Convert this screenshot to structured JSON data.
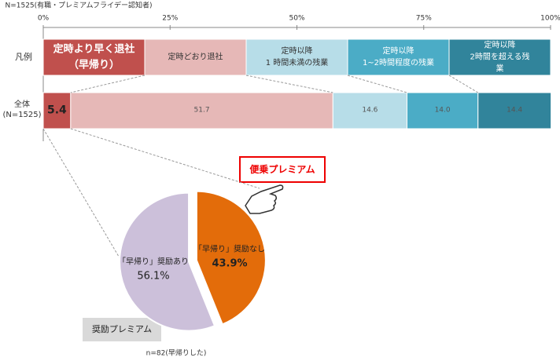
{
  "chart_data": [
    {
      "type": "stacked-bar-horizontal",
      "note": "N=1525(有職・プレミアムフライデー認知者)",
      "legend_label": "凡例",
      "categories": [
        "全体\n(N=1525)"
      ],
      "xlim": [
        0,
        100
      ],
      "xticks": [
        {
          "value": 0,
          "label": "0%"
        },
        {
          "value": 25,
          "label": "25%"
        },
        {
          "value": 50,
          "label": "50%"
        },
        {
          "value": 75,
          "label": "75%"
        },
        {
          "value": 100,
          "label": "100%"
        }
      ],
      "series": [
        {
          "name": "定時より早く退社\n（早帰り）",
          "color": "#c0504d",
          "values": [
            5.4
          ]
        },
        {
          "name": "定時どおり退社",
          "color": "#e6b8b7",
          "values": [
            51.7
          ]
        },
        {
          "name": "定時以降\n1 時間未満の残業",
          "color": "#b7dde8",
          "values": [
            14.6
          ]
        },
        {
          "name": "定時以降\n1~2時間程度の残業",
          "color": "#4bacc6",
          "values": [
            14.0
          ],
          "value_labels": [
            "14.0"
          ]
        },
        {
          "name": "定時以降\n2時間を超える残業",
          "color": "#31849b",
          "values": [
            14.4
          ]
        }
      ]
    },
    {
      "type": "pie",
      "categories": [
        "「早帰り」奨励なし",
        "「早帰り」奨励あり"
      ],
      "values": [
        43.9,
        56.1
      ],
      "value_labels": [
        "43.9%",
        "56.1%"
      ],
      "colors": [
        "#e36c0a",
        "#ccc0da"
      ],
      "annotations": [
        "便乗プレミアム",
        "奨励プレミアム"
      ],
      "note": "n=82(早帰りした)"
    }
  ]
}
